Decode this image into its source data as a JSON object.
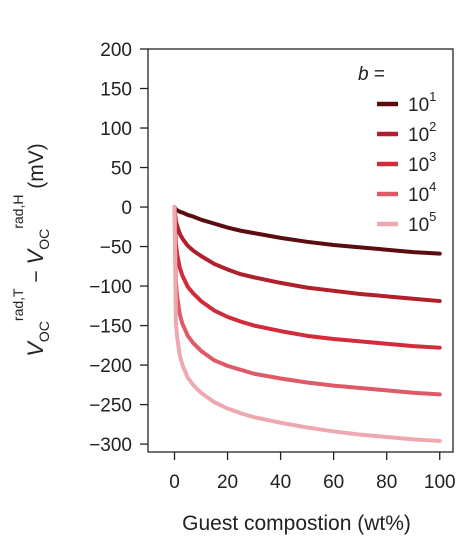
{
  "chart_data": {
    "type": "line",
    "xlabel": "Guest compostion (wt%)",
    "ylabel": {
      "parts": [
        {
          "text": "V",
          "style": "italic"
        },
        {
          "text": "OC",
          "style": "sub"
        },
        {
          "text": "rad,T",
          "style": "sup"
        },
        {
          "text": " − ",
          "style": "normal"
        },
        {
          "text": "V",
          "style": "italic"
        },
        {
          "text": "OC",
          "style": "sub"
        },
        {
          "text": "rad,H",
          "style": "sup"
        },
        {
          "text": " (mV)",
          "style": "normal"
        }
      ]
    },
    "xlim": [
      -10,
      105
    ],
    "ylim": [
      -310,
      200
    ],
    "x_ticks": [
      0,
      20,
      40,
      60,
      80,
      100
    ],
    "x_tick_labels": [
      "0",
      "20",
      "40",
      "60",
      "80",
      "100"
    ],
    "y_ticks": [
      200,
      150,
      100,
      50,
      0,
      -50,
      -100,
      -150,
      -200,
      -250,
      -300
    ],
    "y_tick_labels": [
      "200",
      "150",
      "100",
      "50",
      "0",
      "−50",
      "−100",
      "−150",
      "−200",
      "−250",
      "−300"
    ],
    "grid": false,
    "legend": {
      "title": "b =",
      "placement": "top-right"
    },
    "x": [
      0,
      0.5,
      1,
      2,
      3,
      5,
      7,
      10,
      15,
      20,
      25,
      30,
      40,
      50,
      60,
      70,
      80,
      90,
      100
    ],
    "series": [
      {
        "name": "10^1",
        "base": "10",
        "exp": "1",
        "color": "#5a0c10",
        "values": [
          0,
          -3,
          -4,
          -6,
          -7,
          -10,
          -12,
          -16,
          -21,
          -26,
          -30,
          -33,
          -39,
          -44,
          -48,
          -51,
          -54,
          -57,
          -59
        ]
      },
      {
        "name": "10^2",
        "base": "10",
        "exp": "2",
        "color": "#b0202a",
        "values": [
          0,
          -18,
          -24,
          -34,
          -40,
          -49,
          -55,
          -62,
          -72,
          -79,
          -85,
          -89,
          -96,
          -102,
          -106,
          -110,
          -113,
          -116,
          -119
        ]
      },
      {
        "name": "10^3",
        "base": "10",
        "exp": "3",
        "color": "#d22b3a",
        "values": [
          0,
          -47,
          -60,
          -77,
          -87,
          -101,
          -109,
          -119,
          -131,
          -139,
          -145,
          -150,
          -157,
          -163,
          -167,
          -170,
          -173,
          -176,
          -178
        ]
      },
      {
        "name": "10^4",
        "base": "10",
        "exp": "4",
        "color": "#de5a68",
        "values": [
          0,
          -95,
          -113,
          -136,
          -148,
          -163,
          -172,
          -182,
          -194,
          -201,
          -206,
          -211,
          -217,
          -222,
          -226,
          -229,
          -232,
          -235,
          -237
        ]
      },
      {
        "name": "10^5",
        "base": "10",
        "exp": "5",
        "color": "#eea9b0",
        "values": [
          0,
          -145,
          -165,
          -188,
          -200,
          -216,
          -225,
          -235,
          -247,
          -255,
          -261,
          -266,
          -273,
          -279,
          -284,
          -288,
          -291,
          -294,
          -296
        ]
      }
    ]
  }
}
